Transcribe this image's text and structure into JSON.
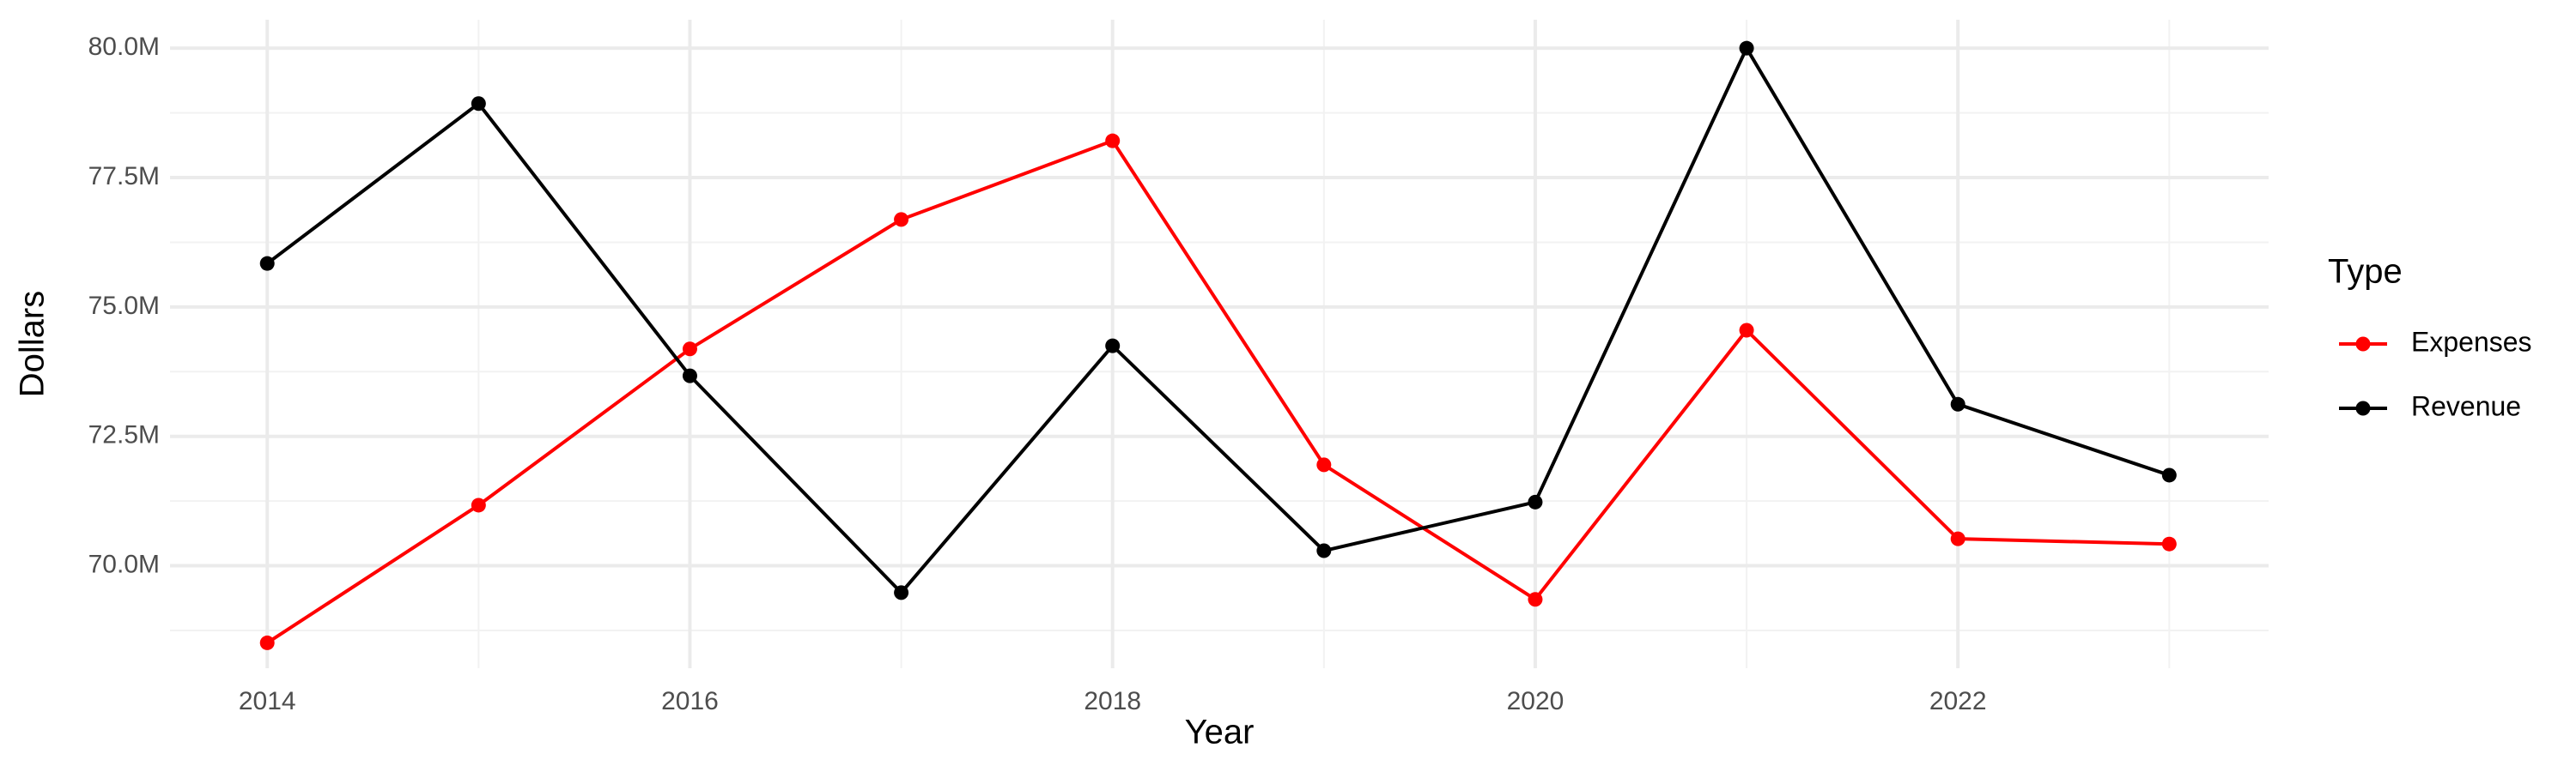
{
  "chart_data": {
    "type": "line",
    "x_label": "Year",
    "y_label": "Dollars",
    "legend_title": "Type",
    "x": [
      2014,
      2015,
      2016,
      2017,
      2018,
      2019,
      2020,
      2021,
      2022,
      2023
    ],
    "series": [
      {
        "name": "Expenses",
        "color": "#ff0000",
        "values": [
          68510000,
          71170000,
          74190000,
          76690000,
          78210000,
          71950000,
          69350000,
          74550000,
          70520000,
          70420000
        ]
      },
      {
        "name": "Revenue",
        "color": "#000000",
        "values": [
          75840000,
          78930000,
          73670000,
          69480000,
          74250000,
          70290000,
          71230000,
          80000000,
          73120000,
          71750000
        ]
      }
    ],
    "xlim": [
      2013.54,
      2023.47
    ],
    "xticks": [
      2014,
      2016,
      2018,
      2020,
      2022
    ],
    "ylim": [
      68020000,
      80550000
    ],
    "yticks": [
      {
        "value": 70000000,
        "label": "70.0M"
      },
      {
        "value": 72500000,
        "label": "72.5M"
      },
      {
        "value": 75000000,
        "label": "75.0M"
      },
      {
        "value": 77500000,
        "label": "77.5M"
      },
      {
        "value": 80000000,
        "label": "80.0M"
      }
    ],
    "grid": true,
    "legend": "right"
  }
}
